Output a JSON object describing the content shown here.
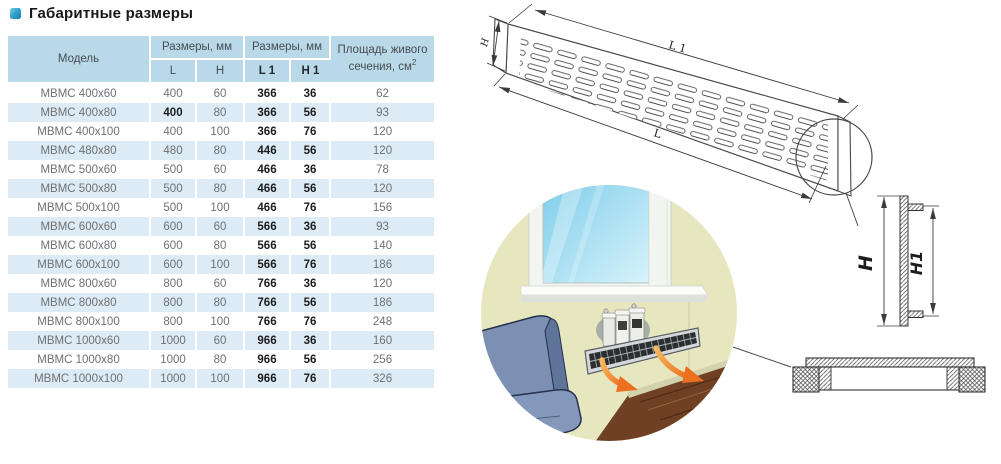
{
  "title": {
    "text": "Габаритные размеры"
  },
  "table": {
    "header": {
      "model": "Модель",
      "dims_a": "Размеры, мм",
      "dims_b": "Размеры, мм",
      "l": "L",
      "h": "H",
      "l1": "L 1",
      "h1": "H 1",
      "area_line1": "Площадь живого",
      "area_line2": "сечения, см",
      "area_sup": "2"
    },
    "rows": [
      {
        "model": "МВМС 400x60",
        "l": "400",
        "h": "60",
        "l1": "366",
        "h1": "36",
        "area": "62"
      },
      {
        "model": "МВМС 400x80",
        "l": "400",
        "h": "80",
        "l1": "366",
        "h1": "56",
        "area": "93",
        "l_bold": true
      },
      {
        "model": "МВМС 400x100",
        "l": "400",
        "h": "100",
        "l1": "366",
        "h1": "76",
        "area": "120"
      },
      {
        "model": "МВМС 480x80",
        "l": "480",
        "h": "80",
        "l1": "446",
        "h1": "56",
        "area": "120"
      },
      {
        "model": "МВМС 500x60",
        "l": "500",
        "h": "60",
        "l1": "466",
        "h1": "36",
        "area": "78"
      },
      {
        "model": "МВМС 500x80",
        "l": "500",
        "h": "80",
        "l1": "466",
        "h1": "56",
        "area": "120"
      },
      {
        "model": "МВМС 500x100",
        "l": "500",
        "h": "100",
        "l1": "466",
        "h1": "76",
        "area": "156"
      },
      {
        "model": "МВМС 600x60",
        "l": "600",
        "h": "60",
        "l1": "566",
        "h1": "36",
        "area": "93"
      },
      {
        "model": "МВМС 600x80",
        "l": "600",
        "h": "80",
        "l1": "566",
        "h1": "56",
        "area": "140"
      },
      {
        "model": "МВМС 600x100",
        "l": "600",
        "h": "100",
        "l1": "566",
        "h1": "76",
        "area": "186"
      },
      {
        "model": "МВМС 800x60",
        "l": "800",
        "h": "60",
        "l1": "766",
        "h1": "36",
        "area": "120"
      },
      {
        "model": "МВМС 800x80",
        "l": "800",
        "h": "80",
        "l1": "766",
        "h1": "56",
        "area": "186"
      },
      {
        "model": "МВМС 800x100",
        "l": "800",
        "h": "100",
        "l1": "766",
        "h1": "76",
        "area": "248"
      },
      {
        "model": "МВМС 1000x60",
        "l": "1000",
        "h": "60",
        "l1": "966",
        "h1": "36",
        "area": "160"
      },
      {
        "model": "МВМС 1000x80",
        "l": "1000",
        "h": "80",
        "l1": "966",
        "h1": "56",
        "area": "256"
      },
      {
        "model": "МВМС 1000x100",
        "l": "1000",
        "h": "100",
        "l1": "966",
        "h1": "76",
        "area": "326"
      }
    ]
  },
  "drawings": {
    "iso": {
      "label_h": "H",
      "label_l1": "L 1",
      "label_l": "L"
    },
    "section": {
      "label_h": "H",
      "label_h1": "H1"
    }
  },
  "colors": {
    "header_bg": "#b9d9e9",
    "stripe_bg": "#dcebf5",
    "accent_blue": "#2e9fd0",
    "arrow_orange": "#ec6f1f"
  }
}
